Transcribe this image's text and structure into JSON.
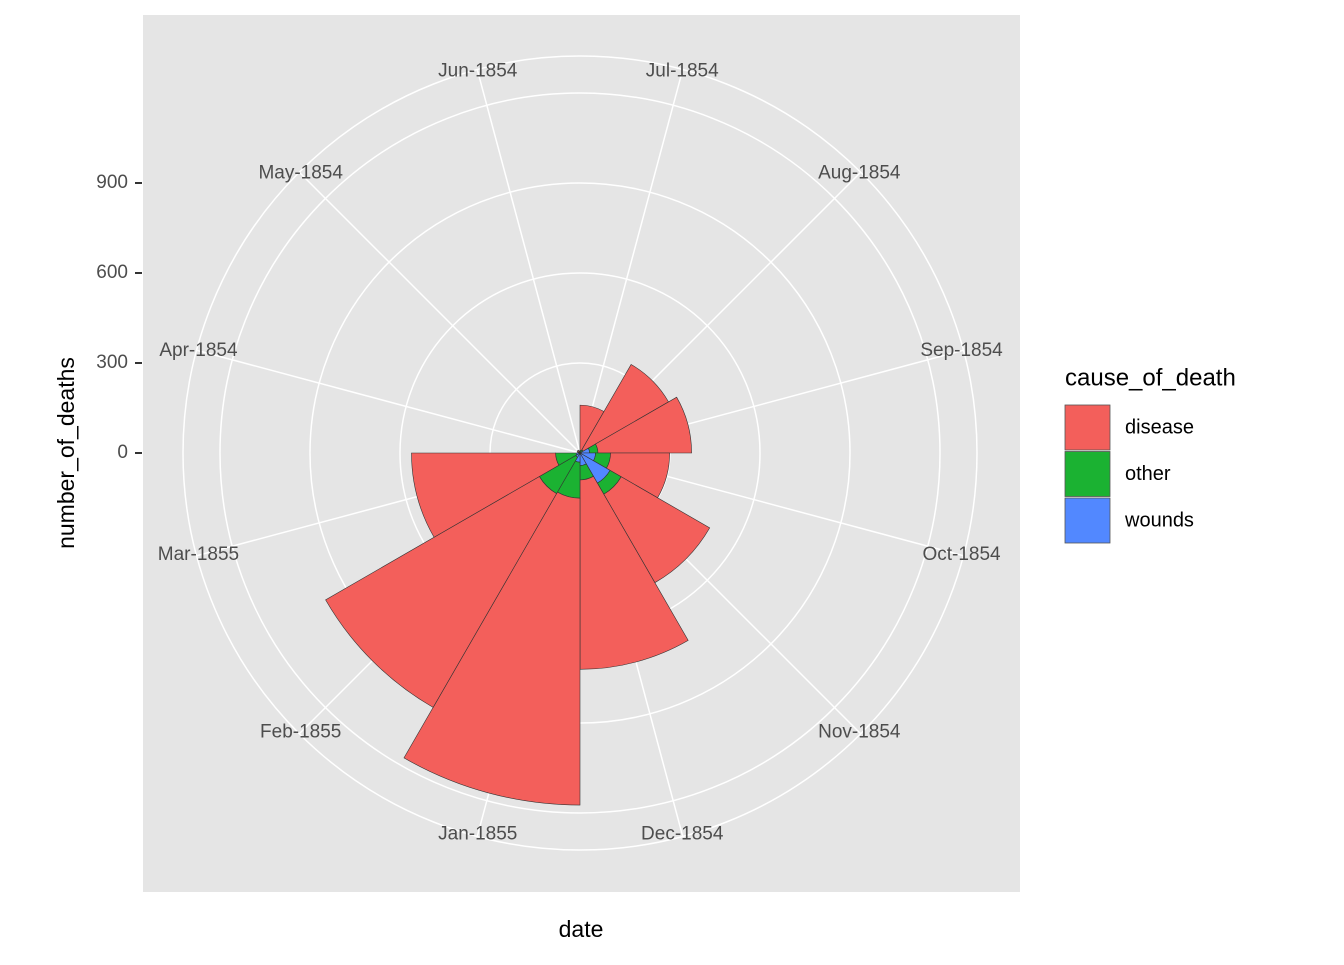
{
  "chart_data": {
    "type": "polar-bar",
    "x_label": "date",
    "y_label": "number_of_deaths",
    "legend_title": "cause_of_death",
    "categories": [
      "Apr-1854",
      "May-1854",
      "Jun-1854",
      "Jul-1854",
      "Aug-1854",
      "Sep-1854",
      "Oct-1854",
      "Nov-1854",
      "Dec-1854",
      "Jan-1855",
      "Feb-1855",
      "Mar-1855"
    ],
    "series": [
      {
        "name": "disease",
        "color": "#F35F5B",
        "values": [
          1.4,
          6.2,
          4.7,
          150,
          328.5,
          312.2,
          197,
          340.6,
          631.5,
          1022.8,
          822.8,
          480.3
        ]
      },
      {
        "name": "other",
        "color": "#1BB232",
        "values": [
          7.0,
          4.6,
          2.5,
          9.6,
          11.9,
          27.7,
          50.1,
          42.8,
          48.0,
          120.0,
          140.1,
          68.6
        ]
      },
      {
        "name": "wounds",
        "color": "#5288FF",
        "values": [
          0,
          0,
          0,
          0,
          0.4,
          32.1,
          51.7,
          115.8,
          41.7,
          30.7,
          16.3,
          12.8
        ]
      }
    ],
    "ylim": [
      0,
      1200
    ],
    "yticks": [
      0,
      300,
      600,
      900
    ],
    "grid": true,
    "stacked": true
  }
}
